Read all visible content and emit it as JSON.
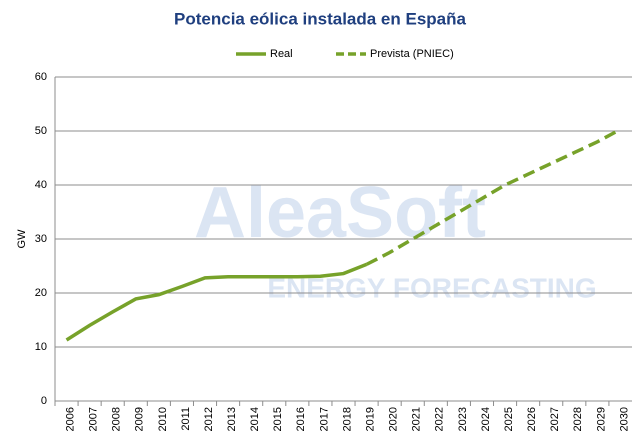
{
  "chart_data": {
    "type": "line",
    "title": "Potencia eólica instalada en España",
    "watermark": [
      "AleaSoft",
      "ENERGY FORECASTING"
    ],
    "ylabel": "GW",
    "categories": [
      "2006",
      "2007",
      "2008",
      "2009",
      "2010",
      "2011",
      "2012",
      "2013",
      "2014",
      "2015",
      "2016",
      "2017",
      "2018",
      "2019",
      "2020",
      "2021",
      "2022",
      "2023",
      "2024",
      "2025",
      "2026",
      "2027",
      "2028",
      "2029",
      "2030"
    ],
    "series": [
      {
        "name": "Real",
        "color": "#77a22a",
        "dashed": false,
        "values": [
          11.3,
          14.0,
          16.5,
          18.9,
          19.7,
          21.2,
          22.8,
          23.0,
          23.0,
          23.0,
          23.0,
          23.1,
          23.6,
          25.3,
          null,
          null,
          null,
          null,
          null,
          null,
          null,
          null,
          null,
          null,
          null
        ]
      },
      {
        "name": "Prevista (PNIEC)",
        "color": "#77a22a",
        "dashed": true,
        "values": [
          null,
          null,
          null,
          null,
          null,
          null,
          null,
          null,
          null,
          null,
          null,
          null,
          null,
          25.3,
          27.5,
          30.0,
          32.5,
          35.0,
          37.5,
          40.0,
          42.0,
          44.0,
          46.0,
          48.0,
          50.3
        ]
      }
    ],
    "ylim": [
      0,
      60
    ],
    "yticks": [
      0,
      10,
      20,
      30,
      40,
      50,
      60
    ],
    "grid": true
  }
}
